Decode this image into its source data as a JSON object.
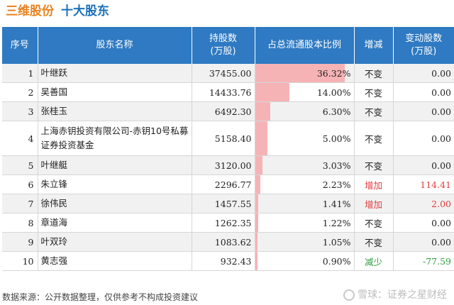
{
  "header": {
    "company": "三维股份",
    "subtitle": "十大股东"
  },
  "table": {
    "columns": [
      "序号",
      "股东名称",
      "持股数\n(万股)",
      "占总流通股本比例",
      "增减",
      "变动股数\n(万股)"
    ],
    "rows": [
      {
        "idx": "1",
        "name": "叶继跃",
        "shares": "37455.00",
        "pct": "36.32%",
        "pct_value": 36.32,
        "change": "不变",
        "change_kind": "same",
        "delta": "0.00"
      },
      {
        "idx": "2",
        "name": "吴善国",
        "shares": "14433.76",
        "pct": "14.00%",
        "pct_value": 14.0,
        "change": "不变",
        "change_kind": "same",
        "delta": "0.00"
      },
      {
        "idx": "3",
        "name": "张桂玉",
        "shares": "6492.30",
        "pct": "6.30%",
        "pct_value": 6.3,
        "change": "不变",
        "change_kind": "same",
        "delta": "0.00"
      },
      {
        "idx": "4",
        "name": "上海赤钥投资有限公司-赤钥10号私募证券投资基金",
        "shares": "5158.40",
        "pct": "5.00%",
        "pct_value": 5.0,
        "change": "不变",
        "change_kind": "same",
        "delta": "0.00"
      },
      {
        "idx": "5",
        "name": "叶继艇",
        "shares": "3120.00",
        "pct": "3.03%",
        "pct_value": 3.03,
        "change": "不变",
        "change_kind": "same",
        "delta": "0.00"
      },
      {
        "idx": "6",
        "name": "朱立锋",
        "shares": "2296.77",
        "pct": "2.23%",
        "pct_value": 2.23,
        "change": "增加",
        "change_kind": "up",
        "delta": "114.41"
      },
      {
        "idx": "7",
        "name": "徐伟民",
        "shares": "1457.55",
        "pct": "1.41%",
        "pct_value": 1.41,
        "change": "增加",
        "change_kind": "up",
        "delta": "2.00"
      },
      {
        "idx": "8",
        "name": "章道海",
        "shares": "1262.35",
        "pct": "1.22%",
        "pct_value": 1.22,
        "change": "不变",
        "change_kind": "same",
        "delta": "0.00"
      },
      {
        "idx": "9",
        "name": "叶双玲",
        "shares": "1083.62",
        "pct": "1.05%",
        "pct_value": 1.05,
        "change": "不变",
        "change_kind": "same",
        "delta": "0.00"
      },
      {
        "idx": "10",
        "name": "黄志强",
        "shares": "932.43",
        "pct": "0.90%",
        "pct_value": 0.9,
        "change": "减少",
        "change_kind": "down",
        "delta": "-77.59"
      }
    ]
  },
  "footer": {
    "source": "数据来源：公开数据整理，仅供参考不构成投资建议",
    "brand": "雪球：证券之星财经"
  },
  "colors": {
    "title_orange": "#e8821e",
    "title_blue": "#1a6fb7",
    "header_bg": "#2f7ac2",
    "bar_fill": "#f6b3b6",
    "increase": "#e23b3b",
    "decrease": "#2e9e3e"
  }
}
